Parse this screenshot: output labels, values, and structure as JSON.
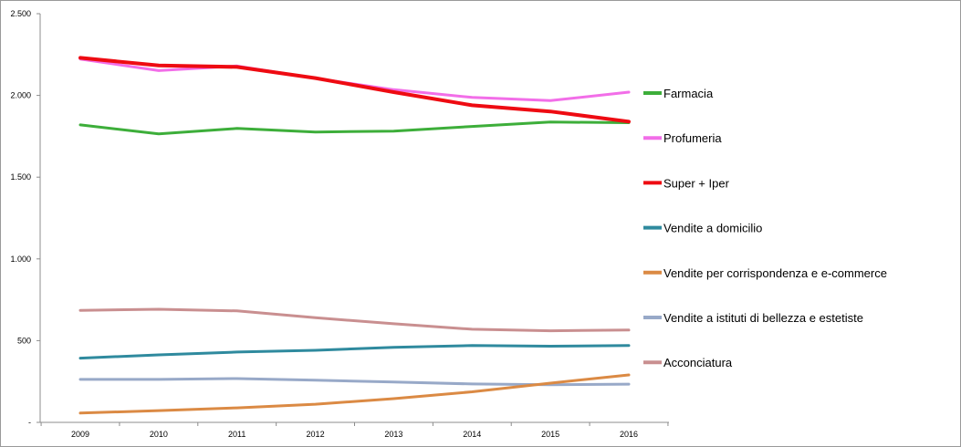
{
  "chart_data": {
    "type": "line",
    "title": "",
    "xlabel": "",
    "ylabel": "",
    "categories": [
      "2009",
      "2010",
      "2011",
      "2012",
      "2013",
      "2014",
      "2015",
      "2016"
    ],
    "ylim": [
      0,
      2500
    ],
    "y_ticks": [
      {
        "value": 0,
        "label": "-"
      },
      {
        "value": 500,
        "label": "500"
      },
      {
        "value": 1000,
        "label": "1.000"
      },
      {
        "value": 1500,
        "label": "1.500"
      },
      {
        "value": 2000,
        "label": "2.000"
      },
      {
        "value": 2500,
        "label": "2.500"
      }
    ],
    "grid": false,
    "legend_position": "right",
    "series": [
      {
        "name": "Farmacia",
        "color": "#3dae3a",
        "values": [
          1820,
          1765,
          1798,
          1776,
          1782,
          1810,
          1837,
          1833
        ]
      },
      {
        "name": "Profumeria",
        "color": "#f26ee8",
        "values": [
          2222,
          2152,
          2180,
          2105,
          2035,
          1988,
          1968,
          2020
        ]
      },
      {
        "name": "Super + Iper",
        "color": "#ee0b12",
        "values": [
          2230,
          2183,
          2174,
          2106,
          2020,
          1940,
          1902,
          1840
        ]
      },
      {
        "name": "Vendite a domicilio",
        "color": "#2f8a9e",
        "values": [
          393,
          413,
          430,
          441,
          459,
          470,
          466,
          470
        ]
      },
      {
        "name": "Vendite per corrispondenza e e-commerce",
        "color": "#db8a44",
        "values": [
          57,
          72,
          89,
          111,
          145,
          187,
          240,
          290
        ]
      },
      {
        "name": "Vendite a istituti di bellezza e estetiste",
        "color": "#98a9c8",
        "values": [
          263,
          263,
          268,
          258,
          247,
          235,
          230,
          234
        ]
      },
      {
        "name": "Acconciatura",
        "color": "#c98f90",
        "values": [
          685,
          692,
          682,
          640,
          603,
          570,
          560,
          565
        ]
      }
    ]
  }
}
